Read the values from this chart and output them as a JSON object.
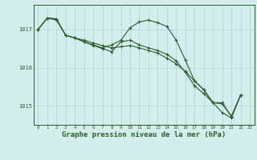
{
  "bg_color": "#d4eeed",
  "grid_color": "#b0d4d0",
  "line_color": "#2a5e2a",
  "xlabel": "Graphe pression niveau de la mer (hPa)",
  "xlabel_fontsize": 6.5,
  "ylabel_ticks": [
    1015,
    1016,
    1017
  ],
  "xlim": [
    -0.5,
    23.5
  ],
  "ylim": [
    1014.5,
    1017.65
  ],
  "xticks": [
    0,
    1,
    2,
    3,
    4,
    5,
    6,
    7,
    8,
    9,
    10,
    11,
    12,
    13,
    14,
    15,
    16,
    17,
    18,
    19,
    20,
    21,
    22,
    23
  ],
  "series1_x": [
    0,
    1,
    2,
    3,
    4,
    5,
    6,
    7,
    8,
    9,
    10,
    11,
    12,
    13,
    14,
    15,
    16,
    17,
    18,
    19,
    20,
    21,
    22
  ],
  "series1_y": [
    1017.0,
    1017.3,
    1017.25,
    1016.85,
    1016.78,
    1016.72,
    1016.65,
    1016.58,
    1016.52,
    1016.55,
    1016.58,
    1016.52,
    1016.45,
    1016.38,
    1016.25,
    1016.1,
    1015.9,
    1015.65,
    1015.42,
    1015.08,
    1015.08,
    1014.72,
    1015.28
  ],
  "series2_x": [
    0,
    1,
    2,
    3,
    4,
    5,
    6,
    7,
    8,
    9,
    10,
    11,
    12,
    13,
    14,
    15,
    16,
    17,
    18,
    19,
    20,
    21,
    22
  ],
  "series2_y": [
    1017.0,
    1017.3,
    1017.28,
    1016.85,
    1016.78,
    1016.68,
    1016.6,
    1016.52,
    1016.6,
    1016.72,
    1017.05,
    1017.2,
    1017.25,
    1017.18,
    1017.08,
    1016.72,
    1016.2,
    1015.65,
    1015.42,
    1015.08,
    1015.05,
    1014.72,
    1015.28
  ],
  "series3_x": [
    0,
    1,
    2,
    3,
    4,
    5,
    6,
    7,
    8,
    9,
    10,
    11,
    12,
    13,
    14,
    15,
    16,
    17,
    18,
    19,
    20,
    21,
    22
  ],
  "series3_y": [
    1017.0,
    1017.3,
    1017.28,
    1016.85,
    1016.78,
    1016.68,
    1016.58,
    1016.5,
    1016.42,
    1016.68,
    1016.72,
    1016.6,
    1016.52,
    1016.45,
    1016.35,
    1016.18,
    1015.88,
    1015.52,
    1015.32,
    1015.08,
    1014.82,
    1014.68,
    1015.28
  ]
}
